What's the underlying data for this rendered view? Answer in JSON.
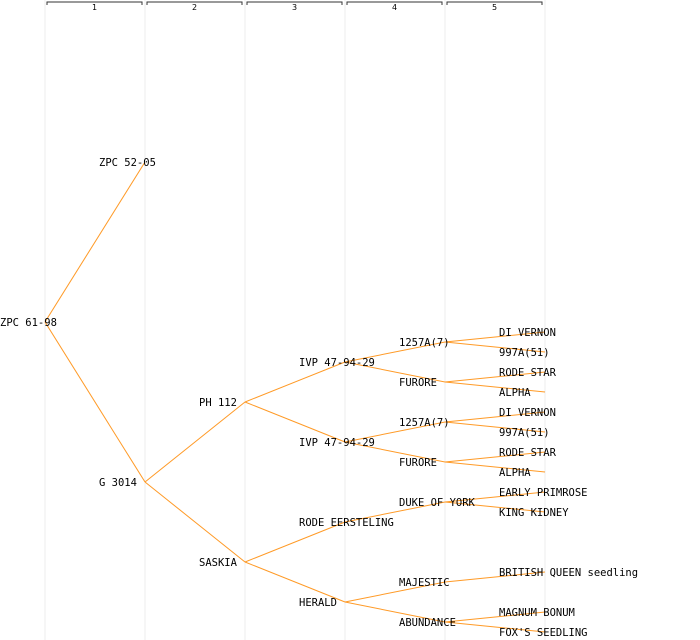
{
  "columns": [
    "1",
    "2",
    "3",
    "4",
    "5"
  ],
  "colors": {
    "edge": "#ff9a26",
    "grid": "#ececec",
    "bracket": "#333333"
  },
  "tree": {
    "label": "ZPC 61-98",
    "children": [
      {
        "label": "ZPC 52-05"
      },
      {
        "label": "G 3014",
        "children": [
          {
            "label": "PH 112",
            "children": [
              {
                "label": "IVP 47-94-29",
                "children": [
                  {
                    "label": "1257A(7)",
                    "children": [
                      {
                        "label": "DI VERNON"
                      },
                      {
                        "label": "997A(51)"
                      }
                    ]
                  },
                  {
                    "label": "FURORE",
                    "children": [
                      {
                        "label": "RODE STAR"
                      },
                      {
                        "label": "ALPHA"
                      }
                    ]
                  }
                ]
              },
              {
                "label": "IVP 47-94-29",
                "children": [
                  {
                    "label": "1257A(7)",
                    "children": [
                      {
                        "label": "DI VERNON"
                      },
                      {
                        "label": "997A(51)"
                      }
                    ]
                  },
                  {
                    "label": "FURORE",
                    "children": [
                      {
                        "label": "RODE STAR"
                      },
                      {
                        "label": "ALPHA"
                      }
                    ]
                  }
                ]
              }
            ]
          },
          {
            "label": "SASKIA",
            "children": [
              {
                "label": "RODE EERSTELING",
                "children": [
                  {
                    "label": "DUKE OF YORK",
                    "children": [
                      {
                        "label": "EARLY PRIMROSE"
                      },
                      {
                        "label": "KING KIDNEY"
                      }
                    ]
                  }
                ]
              },
              {
                "label": "HERALD",
                "children": [
                  {
                    "label": "MAJESTIC",
                    "children": [
                      {
                        "label": "BRITISH QUEEN seedling"
                      }
                    ]
                  },
                  {
                    "label": "ABUNDANCE",
                    "children": [
                      {
                        "label": "MAGNUM BONUM"
                      },
                      {
                        "label": "FOX'S SEEDLING"
                      }
                    ]
                  }
                ]
              }
            ]
          }
        ]
      }
    ]
  }
}
